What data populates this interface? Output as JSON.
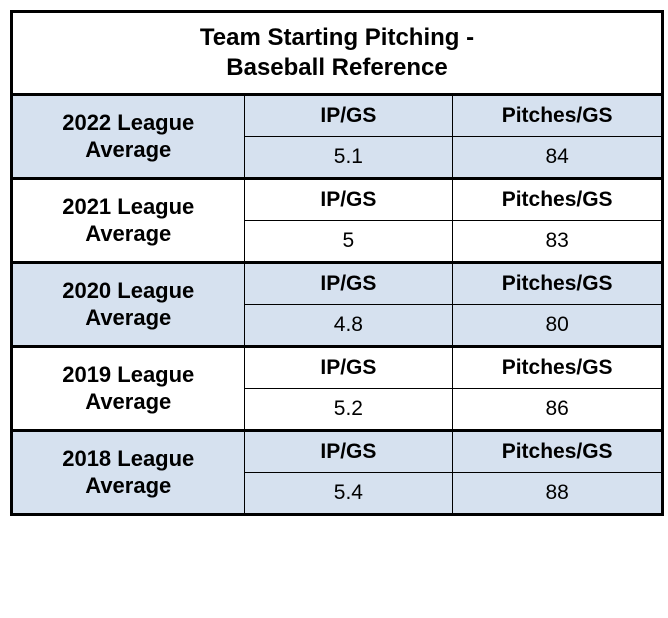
{
  "title_line1": "Team Starting Pitching -",
  "title_line2": "Baseball Reference",
  "col1_header": "IP/GS",
  "col2_header": "Pitches/GS",
  "shade_color": "#d6e1ef",
  "rows": [
    {
      "label": "2022 League Average",
      "ip_gs": "5.1",
      "pitches_gs": "84",
      "shaded": true
    },
    {
      "label": "2021 League Average",
      "ip_gs": "5",
      "pitches_gs": "83",
      "shaded": false
    },
    {
      "label": "2020 League Average",
      "ip_gs": "4.8",
      "pitches_gs": "80",
      "shaded": true
    },
    {
      "label": "2019 League Average",
      "ip_gs": "5.2",
      "pitches_gs": "86",
      "shaded": false
    },
    {
      "label": "2018 League Average",
      "ip_gs": "5.4",
      "pitches_gs": "88",
      "shaded": true
    }
  ]
}
